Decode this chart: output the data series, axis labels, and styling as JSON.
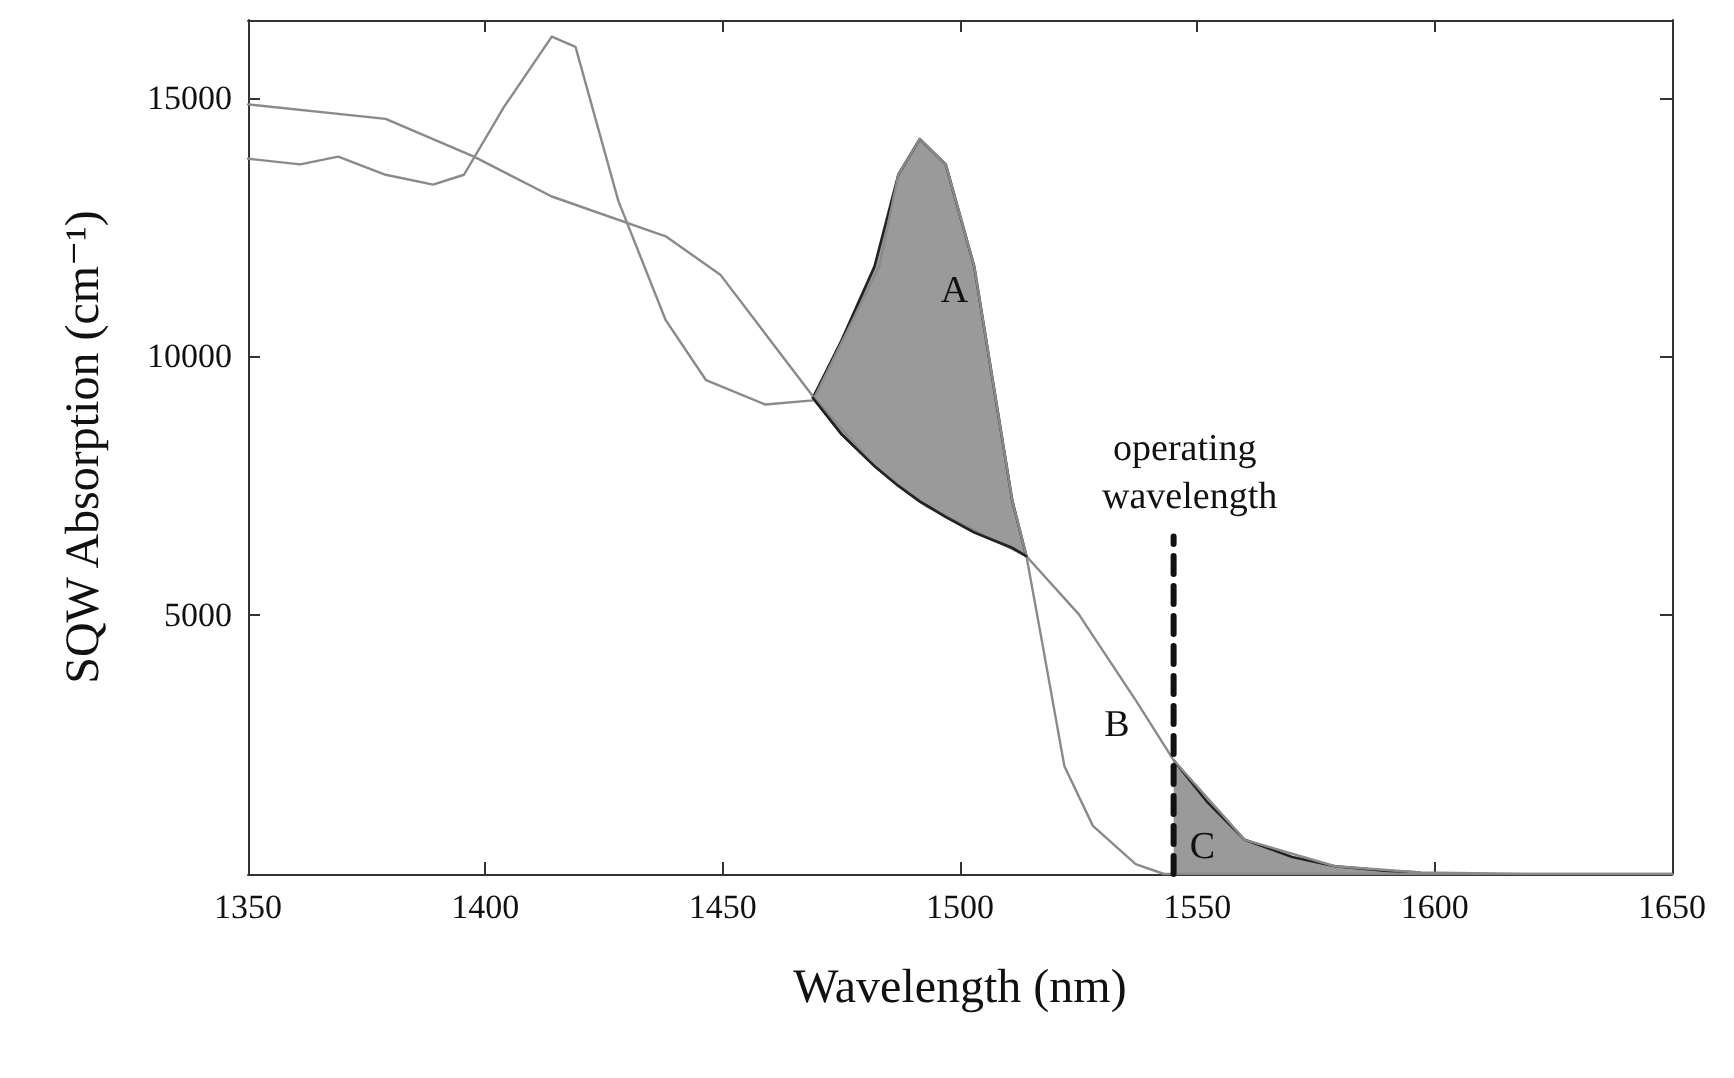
{
  "chart_data": {
    "type": "line",
    "xlabel": "Wavelength (nm)",
    "ylabel": "SQW Absorption (cm⁻¹)",
    "xlim": [
      1350,
      1650
    ],
    "xticks": [
      1350,
      1400,
      1450,
      1500,
      1550,
      1600,
      1650
    ],
    "ylim": [
      0,
      16500
    ],
    "yticks": [
      5000,
      10000,
      15000
    ],
    "grid": false,
    "marker": "none",
    "line_style": "solid",
    "series": [
      {
        "color": "#8a8a8a",
        "x": [
          1350,
          1379,
          1397.6,
          1414,
          1438,
          1449.5,
          1469,
          1482,
          1493,
          1514,
          1525,
          1537,
          1545,
          1560,
          1579,
          1597,
          1620,
          1650
        ],
        "values": [
          14870,
          14590,
          13860,
          13090,
          12320,
          11580,
          9230,
          7880,
          7100,
          6140,
          5020,
          3360,
          2200,
          660,
          150,
          30,
          0,
          0
        ]
      },
      {
        "color": "#8a8a8a",
        "x": [
          1350,
          1361,
          1369,
          1379,
          1389,
          1395.5,
          1404,
          1414,
          1419,
          1428,
          1438,
          1446.5,
          1459,
          1469,
          1483,
          1487,
          1491.5,
          1497,
          1503,
          1511,
          1514,
          1517,
          1522,
          1528,
          1537,
          1543,
          1560,
          1650
        ],
        "values": [
          13820,
          13710,
          13860,
          13510,
          13320,
          13510,
          14830,
          16180,
          15980,
          13010,
          10700,
          9540,
          9070,
          9150,
          11740,
          13510,
          14200,
          13710,
          11740,
          7220,
          6140,
          4630,
          2080,
          930,
          190,
          0,
          0,
          0
        ]
      },
      {
        "type": "line",
        "color": "#222222",
        "x": [
          1469,
          1475,
          1482,
          1487,
          1491.5,
          1497,
          1503,
          1511,
          1514
        ],
        "values": [
          9200,
          8500,
          7880,
          7500,
          7200,
          6900,
          6600,
          6300,
          6140
        ],
        "lower": [
          9200,
          8500,
          7880,
          7500,
          7200,
          6900,
          6600,
          6300,
          6140
        ],
        "upper": [
          9200,
          10300,
          11740,
          13510,
          14200,
          13710,
          11740,
          7220,
          6140
        ]
      },
      {
        "type": "area",
        "color": "#9a9a9a",
        "x": [
          1545,
          1552,
          1560,
          1570,
          1579,
          1590,
          1597
        ],
        "values": [
          2200,
          1400,
          660,
          330,
          150,
          60,
          30
        ]
      },
      {
        "type": "line",
        "name": "operating wavelength",
        "color": "#111111",
        "line_style": "dashed",
        "x": [
          1545,
          1545
        ],
        "values": [
          0,
          6520
        ]
      }
    ],
    "annotations": [
      {
        "text": "A",
        "x": 1503,
        "y": 11740
      },
      {
        "text": "B",
        "x": 1537,
        "y": 3360
      },
      {
        "text": "C",
        "x": 1555,
        "y": 1000
      }
    ]
  }
}
